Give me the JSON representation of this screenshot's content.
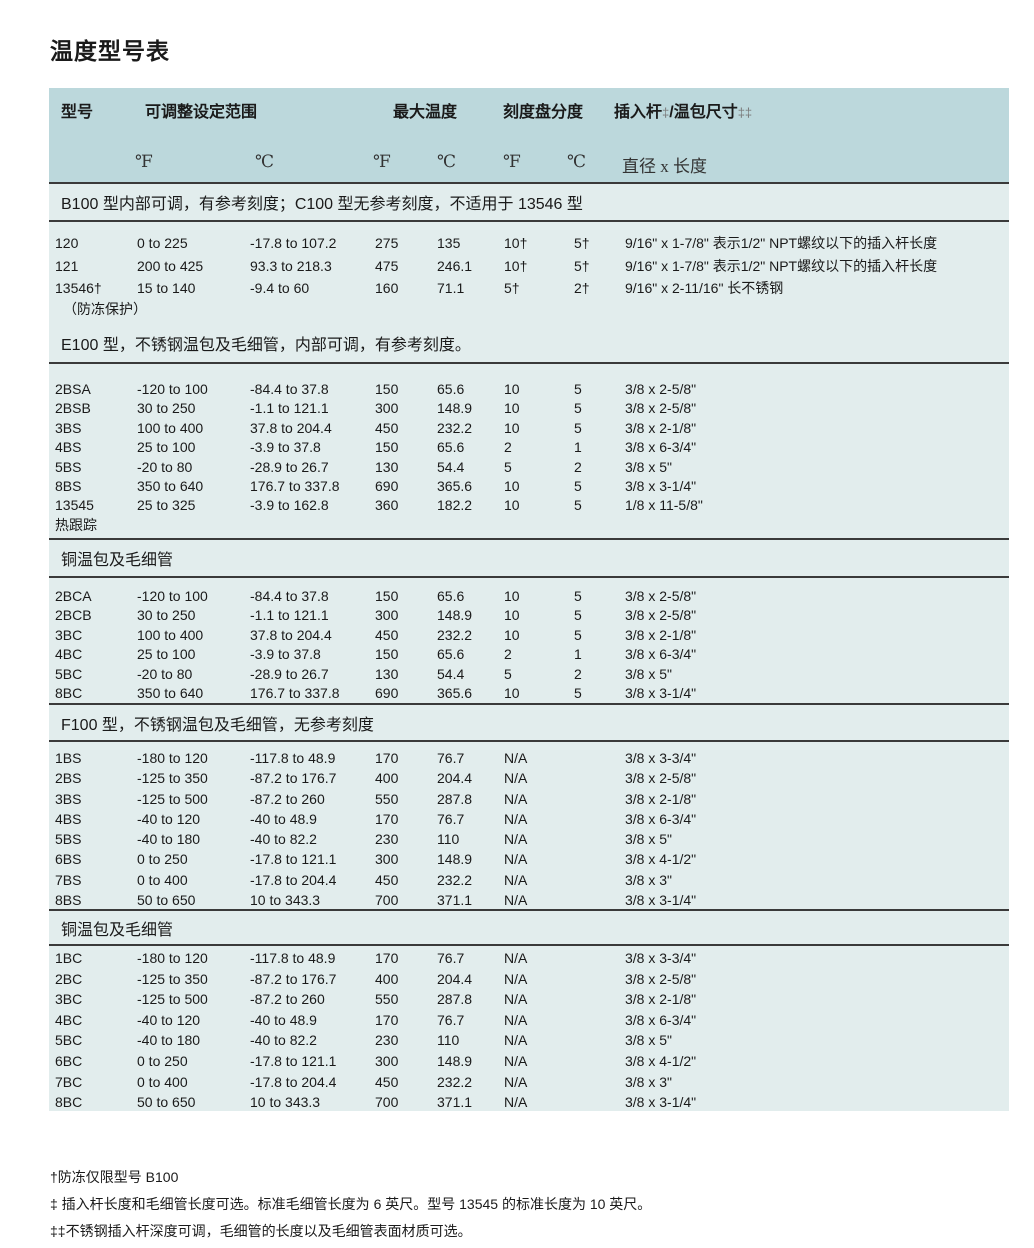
{
  "title": "温度型号表",
  "header": {
    "model": "型号",
    "range": "可调整设定范围",
    "max_temp": "最大温度",
    "dial": "刻度盘分度",
    "size": "插入杆",
    "size_mark1": "‡",
    "size_rest": "/温包尺寸",
    "size_mark2": "‡‡",
    "units": [
      "℉",
      "℃",
      "℉",
      "℃",
      "℉",
      "℃",
      "直径 x 长度"
    ]
  },
  "sections": [
    {
      "heading": "B100 型内部可调，有参考刻度；C100 型无参考刻度，不适用于 13546 型",
      "rows": [
        [
          "120",
          "0 to 225",
          "-17.8 to 107.2",
          "275",
          "135",
          "10†",
          "5†",
          "9/16\" x 1-7/8\"  表示1/2\" NPT螺纹以下的插入杆长度"
        ],
        [
          "121",
          "200 to 425",
          "93.3 to 218.3",
          "475",
          "246.1",
          "10†",
          "5†",
          "9/16\" x 1-7/8\"  表示1/2\" NPT螺纹以下的插入杆长度"
        ],
        [
          "13546†",
          "15 to 140",
          "-9.4 to 60",
          "160",
          "71.1",
          "5†",
          "2†",
          "9/16\" x 2-11/16\"  长不锈钢"
        ]
      ],
      "note": "（防冻保护）"
    },
    {
      "heading": "E100 型，不锈钢温包及毛细管，内部可调，有参考刻度。",
      "rows": [
        [
          "2BSA",
          "-120 to 100",
          "-84.4 to 37.8",
          "150",
          "65.6",
          "10",
          "5",
          "3/8 x 2-5/8\""
        ],
        [
          "2BSB",
          "30 to 250",
          "-1.1 to 121.1",
          "300",
          "148.9",
          "10",
          "5",
          "3/8 x 2-5/8\""
        ],
        [
          "3BS",
          "100 to 400",
          "37.8 to 204.4",
          "450",
          "232.2",
          "10",
          "5",
          "3/8 x 2-1/8\""
        ],
        [
          "4BS",
          "25 to 100",
          "-3.9 to 37.8",
          "150",
          "65.6",
          "2",
          "1",
          "3/8 x 6-3/4\""
        ],
        [
          "5BS",
          "-20 to 80",
          "-28.9 to 26.7",
          "130",
          "54.4",
          "5",
          "2",
          "3/8 x 5\""
        ],
        [
          "8BS",
          "350 to 640",
          "176.7 to 337.8",
          "690",
          "365.6",
          "10",
          "5",
          "3/8 x 3-1/4\""
        ],
        [
          "13545",
          "25 to 325",
          "-3.9 to 162.8",
          "360",
          "182.2",
          "10",
          "5",
          "1/8 x 11-5/8\""
        ]
      ],
      "note": "热跟踪"
    },
    {
      "heading": "铜温包及毛细管",
      "rows": [
        [
          "2BCA",
          "-120 to 100",
          "-84.4 to 37.8",
          "150",
          "65.6",
          "10",
          "5",
          "3/8 x 2-5/8\""
        ],
        [
          "2BCB",
          "30 to 250",
          "-1.1 to 121.1",
          "300",
          "148.9",
          "10",
          "5",
          "3/8 x 2-5/8\""
        ],
        [
          "3BC",
          "100 to 400",
          "37.8 to 204.4",
          "450",
          "232.2",
          "10",
          "5",
          "3/8 x 2-1/8\""
        ],
        [
          "4BC",
          "25 to 100",
          "-3.9 to 37.8",
          "150",
          "65.6",
          "2",
          "1",
          "3/8 x 6-3/4\""
        ],
        [
          "5BC",
          "-20 to 80",
          "-28.9 to 26.7",
          "130",
          "54.4",
          "5",
          "2",
          "3/8 x 5\""
        ],
        [
          "8BC",
          "350 to 640",
          "176.7 to 337.8",
          "690",
          "365.6",
          "10",
          "5",
          "3/8 x 3-1/4\""
        ]
      ]
    },
    {
      "heading": "F100 型，不锈钢温包及毛细管，无参考刻度",
      "rows": [
        [
          "1BS",
          "-180 to 120",
          "-117.8 to 48.9",
          "170",
          "76.7",
          "N/A",
          "",
          "3/8 x 3-3/4\""
        ],
        [
          "2BS",
          "-125 to 350",
          "-87.2 to 176.7",
          "400",
          "204.4",
          "N/A",
          "",
          "3/8 x 2-5/8\""
        ],
        [
          "3BS",
          "-125 to 500",
          "-87.2 to 260",
          "550",
          "287.8",
          "N/A",
          "",
          "3/8 x 2-1/8\""
        ],
        [
          "4BS",
          "-40 to 120",
          "-40 to 48.9",
          "170",
          "76.7",
          "N/A",
          "",
          "3/8 x 6-3/4\""
        ],
        [
          "5BS",
          "-40 to 180",
          "-40 to 82.2",
          "230",
          "110",
          "N/A",
          "",
          "3/8 x 5\""
        ],
        [
          "6BS",
          "0 to 250",
          "-17.8 to 121.1",
          "300",
          "148.9",
          "N/A",
          "",
          "3/8 x 4-1/2\""
        ],
        [
          "7BS",
          "0 to 400",
          "-17.8 to 204.4",
          "450",
          "232.2",
          "N/A",
          "",
          "3/8 x 3\""
        ],
        [
          "8BS",
          "50 to 650",
          "10 to 343.3",
          "700",
          "371.1",
          "N/A",
          "",
          "3/8 x 3-1/4\""
        ]
      ]
    },
    {
      "heading": "铜温包及毛细管",
      "rows": [
        [
          "1BC",
          "-180 to 120",
          "-117.8 to 48.9",
          "170",
          "76.7",
          "N/A",
          "",
          "3/8 x 3-3/4\""
        ],
        [
          "2BC",
          "-125 to 350",
          "-87.2 to 176.7",
          "400",
          "204.4",
          "N/A",
          "",
          "3/8 x 2-5/8\""
        ],
        [
          "3BC",
          "-125 to 500",
          "-87.2 to 260",
          "550",
          "287.8",
          "N/A",
          "",
          "3/8 x 2-1/8\""
        ],
        [
          "4BC",
          "-40 to 120",
          "-40 to 48.9",
          "170",
          "76.7",
          "N/A",
          "",
          "3/8 x 6-3/4\""
        ],
        [
          "5BC",
          "-40 to 180",
          "-40 to 82.2",
          "230",
          "110",
          "N/A",
          "",
          "3/8 x 5\""
        ],
        [
          "6BC",
          "0 to 250",
          "-17.8 to 121.1",
          "300",
          "148.9",
          "N/A",
          "",
          "3/8 x 4-1/2\""
        ],
        [
          "7BC",
          "0 to 400",
          "-17.8 to 204.4",
          "450",
          "232.2",
          "N/A",
          "",
          "3/8 x 3\""
        ],
        [
          "8BC",
          "50 to 650",
          "10 to 343.3",
          "700",
          "371.1",
          "N/A",
          "",
          "3/8 x 3-1/4\""
        ]
      ]
    }
  ],
  "footnotes": [
    "†防冻仅限型号 B100",
    "‡  插入杆长度和毛细管长度可选。标准毛细管长度为 6 英尺。型号 13545 的标准长度为 10 英尺。",
    "‡‡不锈钢插入杆深度可调，毛细管的长度以及毛细管表面材质可选。"
  ]
}
